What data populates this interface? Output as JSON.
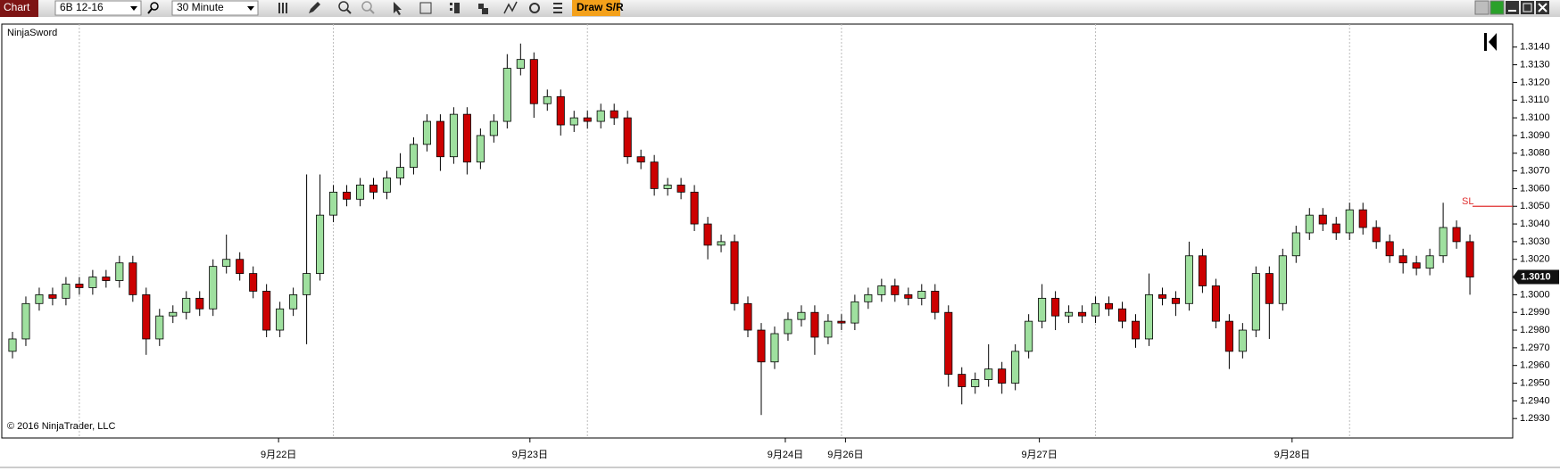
{
  "toolbar": {
    "tab": "Chart",
    "instrument": "6B 12-16",
    "interval": "30 Minute",
    "draw_button": "Draw S/R"
  },
  "chart_data": {
    "type": "candlestick",
    "indicator": "NinjaSword",
    "copyright": "© 2016 NinjaTrader, LLC",
    "up_color": "#9fe09f",
    "down_color": "#cc0000",
    "open": [
      1.2968,
      1.2975,
      1.2995,
      1.3,
      1.2998,
      1.3006,
      1.3004,
      1.301,
      1.3008,
      1.3018,
      1.3,
      1.2975,
      1.2988,
      1.299,
      1.2998,
      1.2992,
      1.3016,
      1.302,
      1.3012,
      1.3002,
      1.298,
      1.2992,
      1.3,
      1.3012,
      1.3045,
      1.3058,
      1.3054,
      1.3062,
      1.3058,
      1.3066,
      1.3072,
      1.3085,
      1.3098,
      1.3078,
      1.3102,
      1.3075,
      1.309,
      1.3098,
      1.3128,
      1.3133,
      1.3108,
      1.3112,
      1.3096,
      1.31,
      1.3098,
      1.3104,
      1.31,
      1.3078,
      1.3075,
      1.306,
      1.3062,
      1.3058,
      1.304,
      1.3028,
      1.303,
      1.2995,
      1.298,
      1.2962,
      1.2978,
      1.2986,
      1.299,
      1.2976,
      1.2985,
      1.2984,
      1.2996,
      1.3,
      1.3005,
      1.3,
      1.2998,
      1.3002,
      1.299,
      1.2955,
      1.2948,
      1.2952,
      1.2958,
      1.295,
      1.2968,
      1.2985,
      1.2998,
      1.2988,
      1.299,
      1.2988,
      1.2995,
      1.2992,
      1.2985,
      1.2975,
      1.3,
      1.2998,
      1.2995,
      1.3022,
      1.3005,
      1.2985,
      1.2968,
      1.298,
      1.3012,
      1.2995,
      1.3022,
      1.3035,
      1.3045,
      1.304,
      1.3035,
      1.3048,
      1.3038,
      1.303,
      1.3022,
      1.3018,
      1.3015,
      1.3022,
      1.3038,
      1.303
    ],
    "high": [
      1.2979,
      1.2999,
      1.3004,
      1.3004,
      1.301,
      1.301,
      1.3014,
      1.3014,
      1.3022,
      1.3022,
      1.3004,
      1.2992,
      1.2994,
      1.3002,
      1.3002,
      1.302,
      1.3034,
      1.3024,
      1.3016,
      1.3006,
      1.2996,
      1.3004,
      1.3068,
      1.3068,
      1.3062,
      1.3062,
      1.3066,
      1.3066,
      1.307,
      1.308,
      1.3089,
      1.3102,
      1.3102,
      1.3106,
      1.3106,
      1.3094,
      1.3102,
      1.3136,
      1.3142,
      1.3137,
      1.3116,
      1.3116,
      1.3104,
      1.3104,
      1.3108,
      1.3108,
      1.3104,
      1.3082,
      1.3079,
      1.3066,
      1.3066,
      1.3062,
      1.3044,
      1.3034,
      1.3034,
      1.2999,
      1.2984,
      1.2982,
      1.299,
      1.2994,
      1.2994,
      1.2989,
      1.2989,
      1.3,
      1.3004,
      1.3009,
      1.3009,
      1.3004,
      1.3006,
      1.3006,
      1.2994,
      1.2959,
      1.2956,
      1.2972,
      1.2962,
      1.2972,
      1.2989,
      1.3006,
      1.3002,
      1.2994,
      1.2994,
      1.2999,
      1.2999,
      1.2996,
      1.2989,
      1.3012,
      1.3004,
      1.3002,
      1.303,
      1.3026,
      1.3009,
      1.2989,
      1.2984,
      1.3016,
      1.3016,
      1.3026,
      1.3039,
      1.3049,
      1.3049,
      1.3044,
      1.3052,
      1.3052,
      1.3042,
      1.3034,
      1.3026,
      1.3022,
      1.3026,
      1.3052,
      1.3042,
      1.3034
    ],
    "low": [
      1.2964,
      1.2971,
      1.2991,
      1.2994,
      1.2994,
      1.3,
      1.3,
      1.3004,
      1.3004,
      1.2996,
      1.2966,
      1.2971,
      1.2984,
      1.2986,
      1.2988,
      1.2988,
      1.3012,
      1.3008,
      1.2998,
      1.2976,
      1.2976,
      1.2988,
      1.2972,
      1.3008,
      1.3041,
      1.305,
      1.305,
      1.3054,
      1.3054,
      1.3062,
      1.3068,
      1.3081,
      1.307,
      1.3074,
      1.3068,
      1.3071,
      1.3086,
      1.3094,
      1.3124,
      1.31,
      1.3104,
      1.309,
      1.3092,
      1.3094,
      1.3094,
      1.3096,
      1.3074,
      1.3071,
      1.3056,
      1.3056,
      1.3054,
      1.3036,
      1.302,
      1.3024,
      1.2991,
      1.2976,
      1.2932,
      1.2958,
      1.2974,
      1.2982,
      1.2966,
      1.2972,
      1.298,
      1.298,
      1.2992,
      1.2996,
      1.2996,
      1.2994,
      1.2994,
      1.2986,
      1.2948,
      1.2938,
      1.2944,
      1.2948,
      1.2944,
      1.2946,
      1.2964,
      1.2981,
      1.298,
      1.2984,
      1.2984,
      1.2984,
      1.2988,
      1.2981,
      1.297,
      1.2971,
      1.2994,
      1.2988,
      1.2991,
      1.3001,
      1.2981,
      1.2958,
      1.2964,
      1.2976,
      1.2975,
      1.2991,
      1.3018,
      1.3031,
      1.3036,
      1.3031,
      1.3031,
      1.3034,
      1.3026,
      1.3018,
      1.3012,
      1.3011,
      1.3011,
      1.3018,
      1.3026,
      1.3
    ],
    "close": [
      1.2975,
      1.2995,
      1.3,
      1.2998,
      1.3006,
      1.3004,
      1.301,
      1.3008,
      1.3018,
      1.3,
      1.2975,
      1.2988,
      1.299,
      1.2998,
      1.2992,
      1.3016,
      1.302,
      1.3012,
      1.3002,
      1.298,
      1.2992,
      1.3,
      1.3012,
      1.3045,
      1.3058,
      1.3054,
      1.3062,
      1.3058,
      1.3066,
      1.3072,
      1.3085,
      1.3098,
      1.3078,
      1.3102,
      1.3075,
      1.309,
      1.3098,
      1.3128,
      1.3133,
      1.3108,
      1.3112,
      1.3096,
      1.31,
      1.3098,
      1.3104,
      1.31,
      1.3078,
      1.3075,
      1.306,
      1.3062,
      1.3058,
      1.304,
      1.3028,
      1.303,
      1.2995,
      1.298,
      1.2962,
      1.2978,
      1.2986,
      1.299,
      1.2976,
      1.2985,
      1.2984,
      1.2996,
      1.3,
      1.3005,
      1.3,
      1.2998,
      1.3002,
      1.299,
      1.2955,
      1.2948,
      1.2952,
      1.2958,
      1.295,
      1.2968,
      1.2985,
      1.2998,
      1.2988,
      1.299,
      1.2988,
      1.2995,
      1.2992,
      1.2985,
      1.2975,
      1.3,
      1.2998,
      1.2995,
      1.3022,
      1.3005,
      1.2985,
      1.2968,
      1.298,
      1.3012,
      1.2995,
      1.3022,
      1.3035,
      1.3045,
      1.304,
      1.3035,
      1.3048,
      1.3038,
      1.303,
      1.3022,
      1.3018,
      1.3015,
      1.3022,
      1.3038,
      1.303,
      1.301
    ],
    "xlim": [
      -0.8,
      112.2
    ],
    "xticks": [
      {
        "value": 19.9,
        "label": "9月22日"
      },
      {
        "value": 38.7,
        "label": "9月23日"
      },
      {
        "value": 57.8,
        "label": "9月24日"
      },
      {
        "value": 62.3,
        "label": "9月26日"
      },
      {
        "value": 76.8,
        "label": "9月27日"
      },
      {
        "value": 95.7,
        "label": "9月28日"
      }
    ],
    "session_breaks": [
      5,
      24,
      43,
      62,
      81,
      100
    ],
    "ylim": [
      1.2919,
      1.3153
    ],
    "yticks": [
      {
        "value": 1.293,
        "label": "1.2930"
      },
      {
        "value": 1.294,
        "label": "1.2940"
      },
      {
        "value": 1.295,
        "label": "1.2950"
      },
      {
        "value": 1.296,
        "label": "1.2960"
      },
      {
        "value": 1.297,
        "label": "1.2970"
      },
      {
        "value": 1.298,
        "label": "1.2980"
      },
      {
        "value": 1.299,
        "label": "1.2990"
      },
      {
        "value": 1.3,
        "label": "1.3000"
      },
      {
        "value": 1.302,
        "label": "1.3020"
      },
      {
        "value": 1.303,
        "label": "1.3030"
      },
      {
        "value": 1.304,
        "label": "1.3040"
      },
      {
        "value": 1.305,
        "label": "1.3050"
      },
      {
        "value": 1.306,
        "label": "1.3060"
      },
      {
        "value": 1.307,
        "label": "1.3070"
      },
      {
        "value": 1.308,
        "label": "1.3080"
      },
      {
        "value": 1.309,
        "label": "1.3090"
      },
      {
        "value": 1.31,
        "label": "1.3100"
      },
      {
        "value": 1.311,
        "label": "1.3110"
      },
      {
        "value": 1.312,
        "label": "1.3120"
      },
      {
        "value": 1.313,
        "label": "1.3130"
      },
      {
        "value": 1.314,
        "label": "1.3140"
      }
    ],
    "last_price": {
      "value": 1.301,
      "label": "1.3010"
    },
    "stop_line": {
      "value": 1.305,
      "label": "SL",
      "color": "#e03030"
    }
  }
}
